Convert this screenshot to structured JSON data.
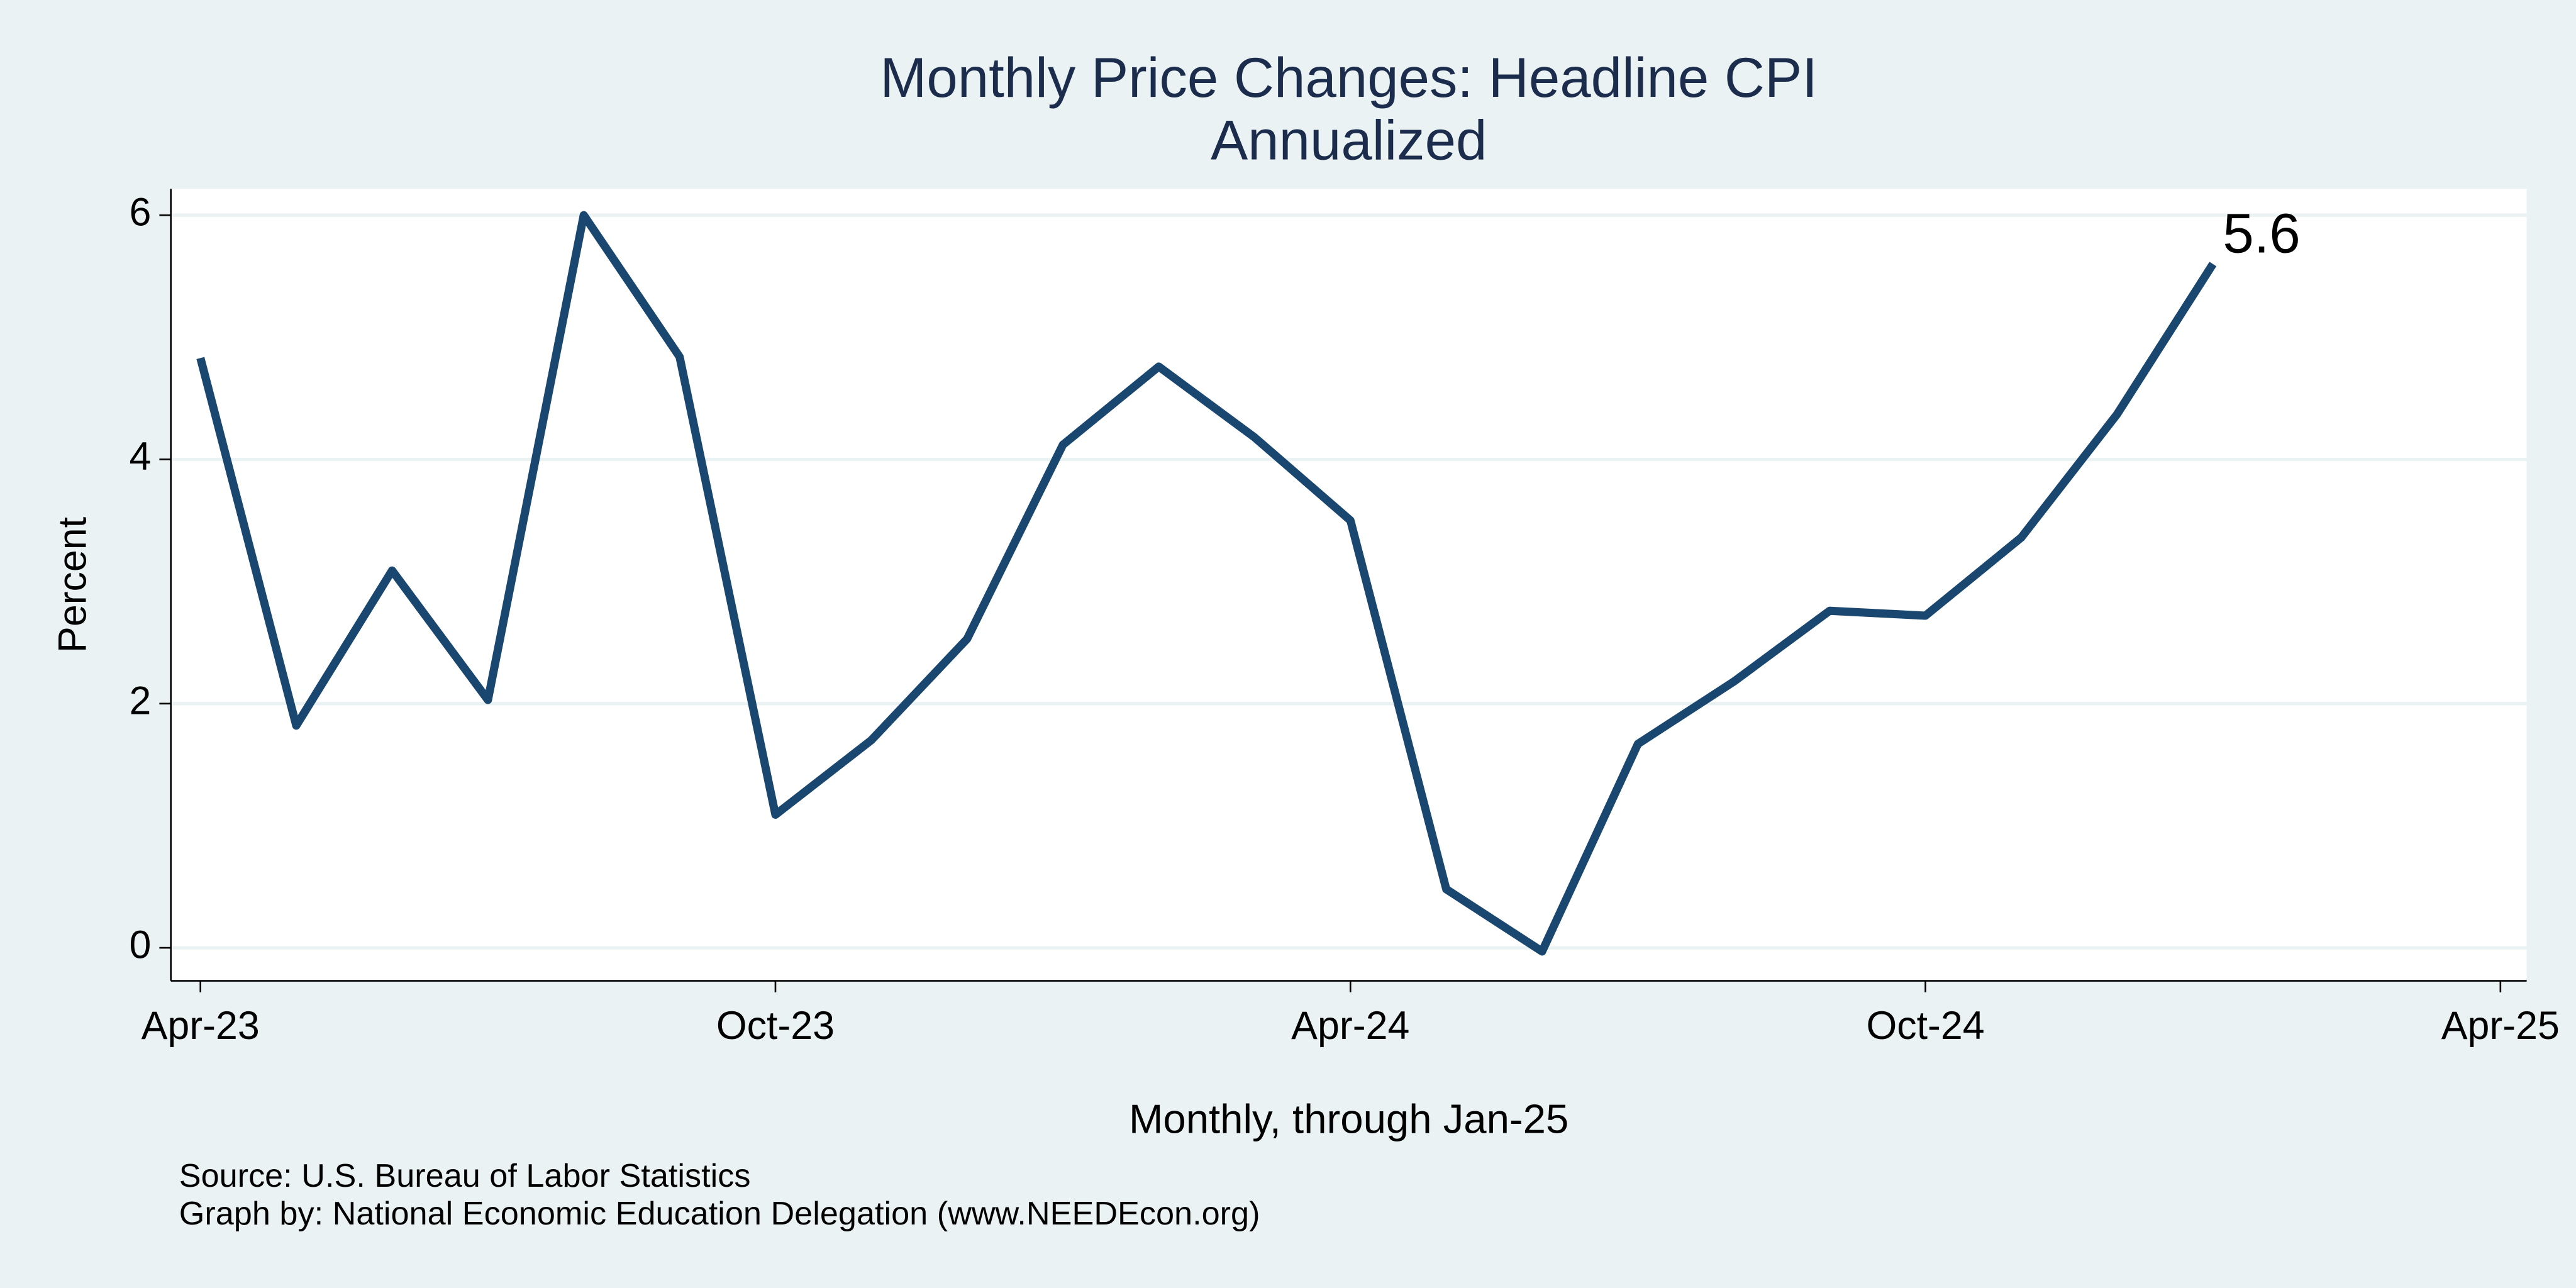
{
  "chart_data": {
    "type": "line",
    "title": "Monthly Price Changes: Headline CPI",
    "subtitle": "Annualized",
    "ylabel": "Percent",
    "xlabel": "Monthly, through Jan-25",
    "notes": [
      "Source: U.S. Bureau of Labor Statistics",
      "Graph by: National Economic Education Delegation (www.NEEDEcon.org)"
    ],
    "x": [
      "Apr-23",
      "May-23",
      "Jun-23",
      "Jul-23",
      "Aug-23",
      "Sep-23",
      "Oct-23",
      "Nov-23",
      "Dec-23",
      "Jan-24",
      "Feb-24",
      "Mar-24",
      "Apr-24",
      "May-24",
      "Jun-24",
      "Jul-24",
      "Aug-24",
      "Sep-24",
      "Oct-24",
      "Nov-24",
      "Dec-24",
      "Jan-25"
    ],
    "values": [
      4.83,
      1.82,
      3.09,
      2.03,
      6.0,
      4.84,
      1.09,
      1.7,
      2.53,
      4.12,
      4.76,
      4.18,
      3.5,
      0.48,
      -0.03,
      1.67,
      2.18,
      2.76,
      2.72,
      3.36,
      4.37,
      5.6
    ],
    "value_labels": [
      null,
      null,
      null,
      null,
      null,
      null,
      null,
      null,
      null,
      null,
      null,
      null,
      null,
      null,
      null,
      null,
      null,
      null,
      null,
      null,
      null,
      "5.6"
    ],
    "color": "#1a476f",
    "xlim": [
      "Apr-23",
      "Apr-25"
    ],
    "xticks": [
      "Apr-23",
      "Oct-23",
      "Apr-24",
      "Oct-24",
      "Apr-25"
    ],
    "ylim": [
      -0.27,
      6.215
    ],
    "yticks": [
      0,
      2,
      4,
      6
    ],
    "grid": true
  }
}
